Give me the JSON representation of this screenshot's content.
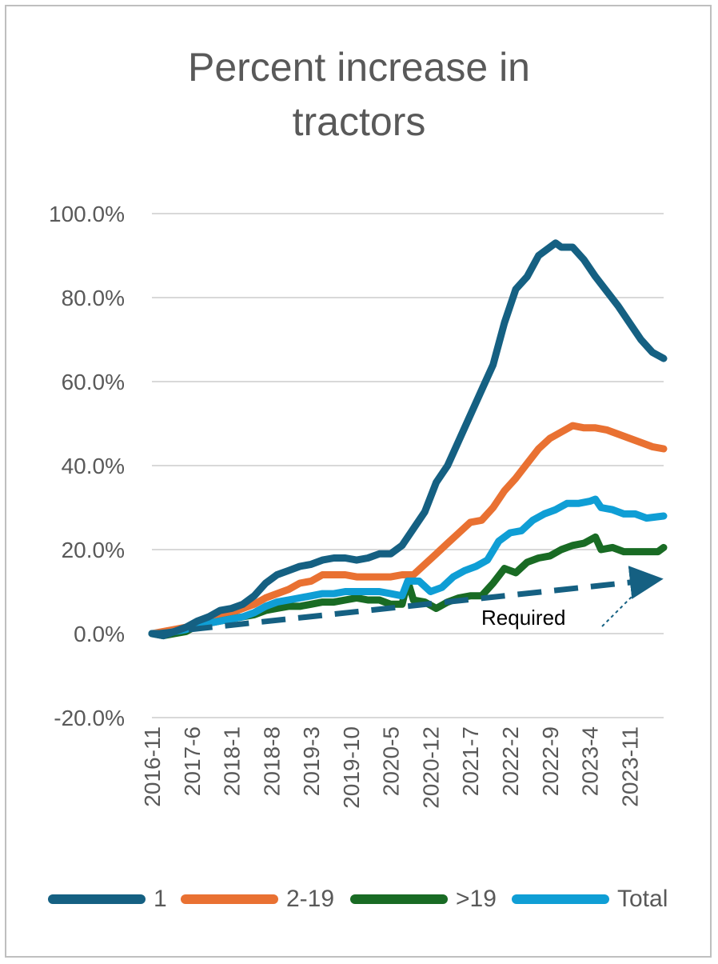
{
  "chart_data": {
    "type": "line",
    "title": "Percent increase in tractors",
    "title_lines": [
      "Percent increase in",
      "tractors"
    ],
    "xlabel": "",
    "ylabel": "",
    "x_tick_labels": [
      "2016-11",
      "2017-6",
      "2018-1",
      "2018-8",
      "2019-3",
      "2019-10",
      "2020-5",
      "2020-12",
      "2021-7",
      "2022-2",
      "2022-9",
      "2023-4",
      "2023-11"
    ],
    "y_tick_labels": [
      "100.0%",
      "80.0%",
      "60.0%",
      "40.0%",
      "20.0%",
      "0.0%",
      "-20.0%"
    ],
    "ylim": [
      -20,
      100
    ],
    "x_range": [
      "2016-11",
      "2024-5"
    ],
    "grid": true,
    "legend_position": "bottom",
    "series": [
      {
        "name": "1",
        "color": "#156082",
        "points": [
          [
            "2016-11",
            0.0
          ],
          [
            "2017-1",
            -0.5
          ],
          [
            "2017-3",
            0.5
          ],
          [
            "2017-5",
            1.5
          ],
          [
            "2017-7",
            3.0
          ],
          [
            "2017-9",
            4.0
          ],
          [
            "2017-11",
            5.5
          ],
          [
            "2018-1",
            6.0
          ],
          [
            "2018-3",
            7.0
          ],
          [
            "2018-5",
            9.0
          ],
          [
            "2018-7",
            12.0
          ],
          [
            "2018-9",
            14.0
          ],
          [
            "2018-11",
            15.0
          ],
          [
            "2019-1",
            16.0
          ],
          [
            "2019-3",
            16.5
          ],
          [
            "2019-5",
            17.5
          ],
          [
            "2019-7",
            18.0
          ],
          [
            "2019-9",
            18.0
          ],
          [
            "2019-11",
            17.5
          ],
          [
            "2020-1",
            18.0
          ],
          [
            "2020-3",
            19.0
          ],
          [
            "2020-5",
            19.0
          ],
          [
            "2020-7",
            21.0
          ],
          [
            "2020-9",
            25.0
          ],
          [
            "2020-11",
            29.0
          ],
          [
            "2021-1",
            36.0
          ],
          [
            "2021-3",
            40.0
          ],
          [
            "2021-5",
            46.0
          ],
          [
            "2021-7",
            52.0
          ],
          [
            "2021-9",
            58.0
          ],
          [
            "2021-11",
            64.0
          ],
          [
            "2022-1",
            74.0
          ],
          [
            "2022-3",
            82.0
          ],
          [
            "2022-5",
            85.0
          ],
          [
            "2022-7",
            90.0
          ],
          [
            "2022-9",
            92.0
          ],
          [
            "2022-10",
            93.0
          ],
          [
            "2022-11",
            92.0
          ],
          [
            "2023-1",
            92.0
          ],
          [
            "2023-3",
            89.0
          ],
          [
            "2023-5",
            85.0
          ],
          [
            "2023-7",
            81.5
          ],
          [
            "2023-9",
            78.0
          ],
          [
            "2023-11",
            74.0
          ],
          [
            "2024-1",
            70.0
          ],
          [
            "2024-3",
            67.0
          ],
          [
            "2024-5",
            65.5
          ]
        ]
      },
      {
        "name": "2-19",
        "color": "#E97132",
        "points": [
          [
            "2016-11",
            0.0
          ],
          [
            "2017-1",
            0.5
          ],
          [
            "2017-3",
            1.0
          ],
          [
            "2017-5",
            1.5
          ],
          [
            "2017-7",
            2.5
          ],
          [
            "2017-9",
            3.0
          ],
          [
            "2017-11",
            4.0
          ],
          [
            "2018-1",
            5.0
          ],
          [
            "2018-3",
            6.0
          ],
          [
            "2018-5",
            7.0
          ],
          [
            "2018-7",
            8.5
          ],
          [
            "2018-9",
            9.5
          ],
          [
            "2018-11",
            10.5
          ],
          [
            "2019-1",
            12.0
          ],
          [
            "2019-3",
            12.5
          ],
          [
            "2019-5",
            14.0
          ],
          [
            "2019-7",
            14.0
          ],
          [
            "2019-9",
            14.0
          ],
          [
            "2019-11",
            13.5
          ],
          [
            "2020-1",
            13.5
          ],
          [
            "2020-3",
            13.5
          ],
          [
            "2020-5",
            13.5
          ],
          [
            "2020-7",
            14.0
          ],
          [
            "2020-9",
            14.0
          ],
          [
            "2020-11",
            16.5
          ],
          [
            "2021-1",
            19.0
          ],
          [
            "2021-3",
            21.5
          ],
          [
            "2021-5",
            24.0
          ],
          [
            "2021-7",
            26.5
          ],
          [
            "2021-9",
            27.0
          ],
          [
            "2021-11",
            30.0
          ],
          [
            "2022-1",
            34.0
          ],
          [
            "2022-3",
            37.0
          ],
          [
            "2022-5",
            40.5
          ],
          [
            "2022-7",
            44.0
          ],
          [
            "2022-9",
            46.5
          ],
          [
            "2022-11",
            48.0
          ],
          [
            "2023-1",
            49.5
          ],
          [
            "2023-3",
            49.0
          ],
          [
            "2023-5",
            49.0
          ],
          [
            "2023-7",
            48.5
          ],
          [
            "2023-9",
            47.5
          ],
          [
            "2023-11",
            46.5
          ],
          [
            "2024-1",
            45.5
          ],
          [
            "2024-3",
            44.5
          ],
          [
            "2024-5",
            44.0
          ]
        ]
      },
      {
        "name": ">19",
        "color": "#196B24",
        "points": [
          [
            "2016-11",
            0.0
          ],
          [
            "2017-1",
            -0.5
          ],
          [
            "2017-3",
            0.0
          ],
          [
            "2017-5",
            0.5
          ],
          [
            "2017-7",
            2.0
          ],
          [
            "2017-9",
            2.5
          ],
          [
            "2017-11",
            3.0
          ],
          [
            "2018-1",
            3.5
          ],
          [
            "2018-3",
            4.0
          ],
          [
            "2018-5",
            4.5
          ],
          [
            "2018-7",
            5.5
          ],
          [
            "2018-9",
            6.0
          ],
          [
            "2018-11",
            6.5
          ],
          [
            "2019-1",
            6.5
          ],
          [
            "2019-3",
            7.0
          ],
          [
            "2019-5",
            7.5
          ],
          [
            "2019-7",
            7.5
          ],
          [
            "2019-9",
            8.0
          ],
          [
            "2019-11",
            8.5
          ],
          [
            "2020-1",
            8.0
          ],
          [
            "2020-3",
            8.0
          ],
          [
            "2020-5",
            7.0
          ],
          [
            "2020-7",
            7.0
          ],
          [
            "2020-8",
            12.5
          ],
          [
            "2020-9",
            8.0
          ],
          [
            "2020-11",
            7.5
          ],
          [
            "2021-1",
            6.0
          ],
          [
            "2021-3",
            7.5
          ],
          [
            "2021-5",
            8.5
          ],
          [
            "2021-7",
            9.0
          ],
          [
            "2021-9",
            9.0
          ],
          [
            "2021-11",
            12.0
          ],
          [
            "2022-1",
            15.5
          ],
          [
            "2022-3",
            14.5
          ],
          [
            "2022-5",
            17.0
          ],
          [
            "2022-7",
            18.0
          ],
          [
            "2022-9",
            18.5
          ],
          [
            "2022-11",
            20.0
          ],
          [
            "2023-1",
            21.0
          ],
          [
            "2023-3",
            21.5
          ],
          [
            "2023-5",
            23.0
          ],
          [
            "2023-6",
            20.0
          ],
          [
            "2023-8",
            20.5
          ],
          [
            "2023-10",
            19.5
          ],
          [
            "2023-12",
            19.5
          ],
          [
            "2024-2",
            19.5
          ],
          [
            "2024-4",
            19.5
          ],
          [
            "2024-5",
            20.5
          ]
        ]
      },
      {
        "name": "Total",
        "color": "#0F9ED5",
        "points": [
          [
            "2016-11",
            0.0
          ],
          [
            "2017-1",
            0.0
          ],
          [
            "2017-3",
            0.5
          ],
          [
            "2017-5",
            1.0
          ],
          [
            "2017-7",
            2.0
          ],
          [
            "2017-9",
            2.5
          ],
          [
            "2017-11",
            3.0
          ],
          [
            "2018-1",
            3.5
          ],
          [
            "2018-3",
            4.0
          ],
          [
            "2018-5",
            5.0
          ],
          [
            "2018-7",
            6.5
          ],
          [
            "2018-9",
            7.5
          ],
          [
            "2018-11",
            8.0
          ],
          [
            "2019-1",
            8.5
          ],
          [
            "2019-3",
            9.0
          ],
          [
            "2019-5",
            9.5
          ],
          [
            "2019-7",
            9.5
          ],
          [
            "2019-9",
            10.0
          ],
          [
            "2019-11",
            10.0
          ],
          [
            "2020-1",
            10.0
          ],
          [
            "2020-3",
            10.0
          ],
          [
            "2020-5",
            9.5
          ],
          [
            "2020-7",
            9.0
          ],
          [
            "2020-8",
            12.5
          ],
          [
            "2020-10",
            12.5
          ],
          [
            "2020-12",
            10.0
          ],
          [
            "2021-2",
            11.0
          ],
          [
            "2021-4",
            13.5
          ],
          [
            "2021-6",
            15.0
          ],
          [
            "2021-8",
            16.0
          ],
          [
            "2021-10",
            17.5
          ],
          [
            "2021-12",
            22.0
          ],
          [
            "2022-2",
            24.0
          ],
          [
            "2022-4",
            24.5
          ],
          [
            "2022-6",
            27.0
          ],
          [
            "2022-8",
            28.5
          ],
          [
            "2022-10",
            29.5
          ],
          [
            "2022-12",
            31.0
          ],
          [
            "2023-2",
            31.0
          ],
          [
            "2023-4",
            31.5
          ],
          [
            "2023-5",
            32.0
          ],
          [
            "2023-6",
            30.0
          ],
          [
            "2023-8",
            29.5
          ],
          [
            "2023-10",
            28.5
          ],
          [
            "2023-12",
            28.5
          ],
          [
            "2024-2",
            27.5
          ],
          [
            "2024-5",
            28.0
          ]
        ]
      }
    ],
    "annotations": [
      {
        "text": "Required",
        "style": "dashed trend arrow",
        "color": "#156082",
        "from": [
          "2016-11",
          0.0
        ],
        "to": [
          "2024-4",
          13.0
        ]
      }
    ]
  }
}
